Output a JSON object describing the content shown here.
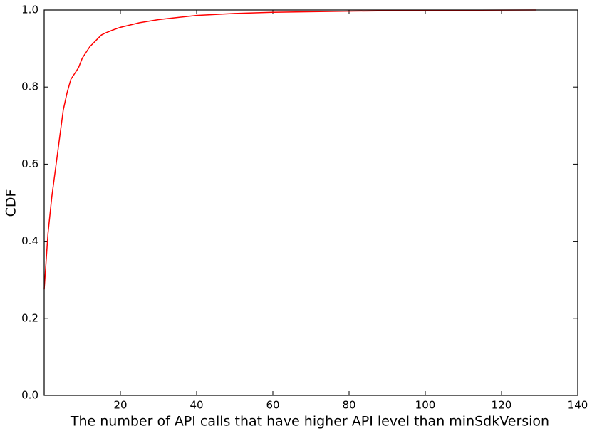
{
  "chart_data": {
    "type": "line",
    "x_label": "The number of API calls that have higher API level than minSdkVersion",
    "y_label": "CDF",
    "x": [
      0,
      1,
      2,
      3,
      4,
      5,
      6,
      7,
      8,
      9,
      10,
      11,
      12,
      13,
      14,
      15,
      16,
      18,
      20,
      25,
      30,
      40,
      50,
      60,
      80,
      100,
      129
    ],
    "series": [
      {
        "name": "CDF",
        "color": "#ff0000",
        "values": [
          0.275,
          0.42,
          0.515,
          0.59,
          0.665,
          0.74,
          0.785,
          0.82,
          0.835,
          0.85,
          0.875,
          0.89,
          0.905,
          0.915,
          0.925,
          0.935,
          0.94,
          0.948,
          0.955,
          0.967,
          0.975,
          0.986,
          0.991,
          0.994,
          0.997,
          0.999,
          1.0
        ]
      }
    ],
    "xlim": [
      0,
      140
    ],
    "xticks": [
      20,
      40,
      60,
      80,
      100,
      120,
      140
    ],
    "ylim": [
      0,
      1
    ],
    "yticks": [
      {
        "value": 0,
        "label": "0.0"
      },
      {
        "value": 0.2,
        "label": "0.2"
      },
      {
        "value": 0.4,
        "label": "0.4"
      },
      {
        "value": 0.6,
        "label": "0.6"
      },
      {
        "value": 0.8,
        "label": "0.8"
      },
      {
        "value": 1,
        "label": "1.0"
      }
    ],
    "grid": false
  }
}
